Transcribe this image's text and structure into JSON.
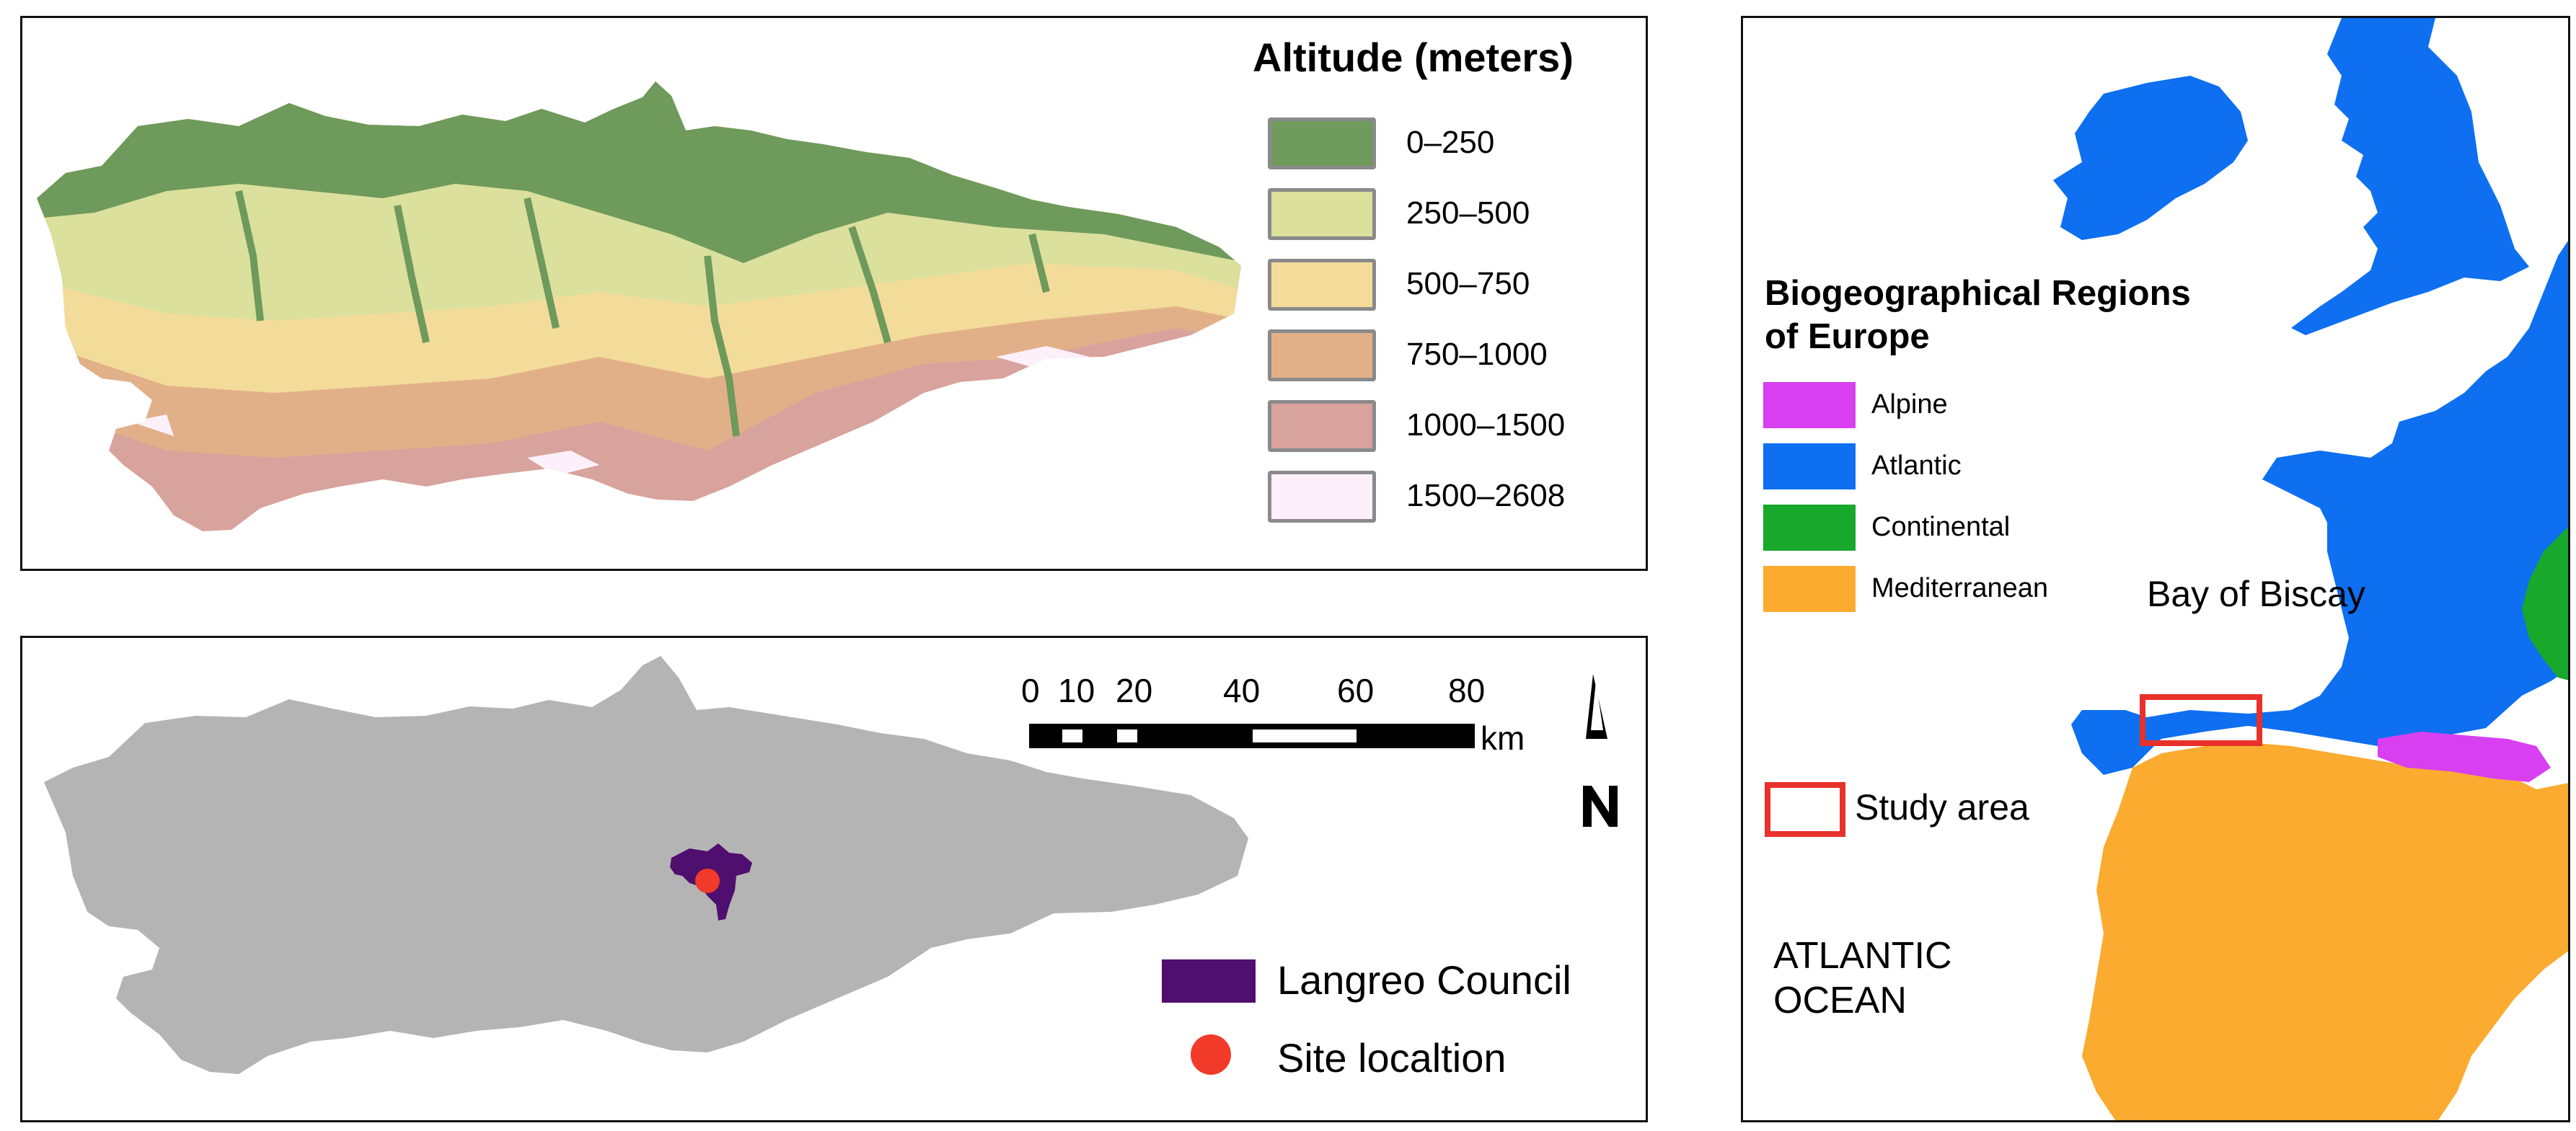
{
  "altitude_panel": {
    "title": "Altitude (meters)",
    "legend": [
      {
        "label": "0–250",
        "color": "#6e9a5c"
      },
      {
        "label": "250–500",
        "color": "#dbe09d"
      },
      {
        "label": "500–750",
        "color": "#f3dc9a"
      },
      {
        "label": "750–1000",
        "color": "#e2b088"
      },
      {
        "label": "1000–1500",
        "color": "#d8a29d"
      },
      {
        "label": "1500–2608",
        "color": "#fdf0fb"
      }
    ]
  },
  "location_panel": {
    "scale_bar": {
      "ticks": [
        "0",
        "10",
        "20",
        "40",
        "60",
        "80"
      ],
      "unit": "km"
    },
    "north_arrow_label": "N",
    "legend": [
      {
        "label": "Langreo Council",
        "color": "#4f0f6e"
      },
      {
        "label": "Site localtion",
        "color": "#f23a2a"
      }
    ],
    "region_color": "#b4b4b4"
  },
  "europe_panel": {
    "title_line1": "Biogeographical Regions",
    "title_line2": "of Europe",
    "legend": [
      {
        "label": "Alpine",
        "color": "#d83ff0"
      },
      {
        "label": "Atlantic",
        "color": "#0e6ff0"
      },
      {
        "label": "Continental",
        "color": "#17a82c"
      },
      {
        "label": "Mediterranean",
        "color": "#fbab2f"
      }
    ],
    "study_area_label": "Study area",
    "bay_label": "Bay of Biscay",
    "ocean_label_line1": "ATLANTIC",
    "ocean_label_line2": "OCEAN",
    "study_area_color": "#e8312a"
  }
}
